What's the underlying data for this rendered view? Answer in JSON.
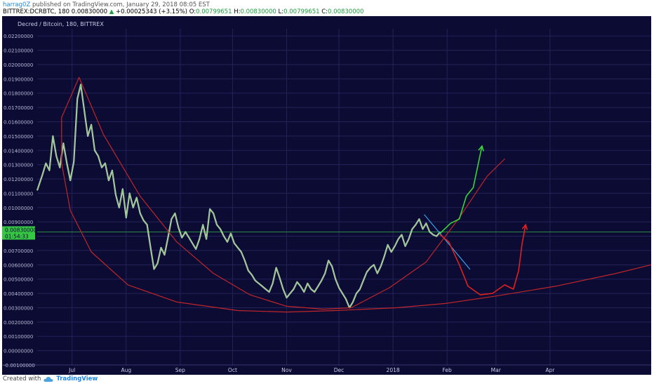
{
  "header": {
    "user": "harrag0Z",
    "published": "published on TradingView.com, January 29, 2018 08:05 EST",
    "symbol": "BITTREX:DCRBTC, 180",
    "price": "0.00830000",
    "arrow": "▲",
    "change": "+0.00025343 (+3.15%)",
    "o_label": "O:",
    "o_value": "0.00799651",
    "h_label": "H:",
    "h_value": "0.00830000",
    "l_label": "L:",
    "l_value": "0.00799651",
    "c_label": "C:",
    "c_value": "0.00830000"
  },
  "footer": {
    "created_with": "Created with",
    "brand": "TradingView",
    "logo_icon": "cloud-logo-icon"
  },
  "chart_data": {
    "type": "line",
    "title": "Decred / Bitcoin, 180, BITTREX",
    "ylim": [
      -0.001,
      0.0225
    ],
    "y_ticks": [
      "0.02200000",
      "0.02100000",
      "0.02000000",
      "0.01900000",
      "0.01800000",
      "0.01700000",
      "0.01600000",
      "0.01500000",
      "0.01400000",
      "0.01300000",
      "0.01200000",
      "0.01100000",
      "0.01000000",
      "0.00900000",
      "0.00800000",
      "0.00700000",
      "0.00600000",
      "0.00500000",
      "0.00400000",
      "0.00300000",
      "0.00200000",
      "0.00100000",
      "0.00000000",
      "-0.00100000"
    ],
    "x_ticks": [
      "Jul",
      "Aug",
      "Sep",
      "Oct",
      "Nov",
      "Dec",
      "2018",
      "Feb",
      "Mar",
      "Apr"
    ],
    "x_tick_days": [
      3,
      34,
      65,
      95,
      126,
      156,
      187,
      218,
      246,
      277
    ],
    "xlim_days": [
      -17,
      335
    ],
    "price_label": "0.00830000",
    "countdown_label": "01:54:33",
    "last_price": 0.0083,
    "series": [
      {
        "values": [
          [
            -17,
            0.0112
          ],
          [
            -14,
            0.0123
          ],
          [
            -12,
            0.0131
          ],
          [
            -10,
            0.0126
          ],
          [
            -8,
            0.015
          ],
          [
            -6,
            0.0136
          ],
          [
            -4,
            0.0128
          ],
          [
            -2,
            0.0145
          ],
          [
            0,
            0.0131
          ],
          [
            2,
            0.0119
          ],
          [
            4,
            0.0132
          ],
          [
            6,
            0.0176
          ],
          [
            8,
            0.0186
          ],
          [
            10,
            0.0168
          ],
          [
            12,
            0.015
          ],
          [
            14,
            0.0158
          ],
          [
            16,
            0.014
          ],
          [
            18,
            0.0136
          ],
          [
            20,
            0.0128
          ],
          [
            22,
            0.0131
          ],
          [
            24,
            0.0119
          ],
          [
            26,
            0.0126
          ],
          [
            28,
            0.0109
          ],
          [
            30,
            0.01
          ],
          [
            32,
            0.0113
          ],
          [
            34,
            0.0093
          ],
          [
            36,
            0.011
          ],
          [
            38,
            0.01
          ],
          [
            40,
            0.0107
          ],
          [
            42,
            0.0096
          ],
          [
            44,
            0.0091
          ],
          [
            46,
            0.0088
          ],
          [
            48,
            0.0072
          ],
          [
            50,
            0.0057
          ],
          [
            52,
            0.0061
          ],
          [
            54,
            0.0072
          ],
          [
            56,
            0.0067
          ],
          [
            58,
            0.0079
          ],
          [
            60,
            0.0092
          ],
          [
            62,
            0.0096
          ],
          [
            64,
            0.0086
          ],
          [
            66,
            0.0079
          ],
          [
            68,
            0.0083
          ],
          [
            70,
            0.0079
          ],
          [
            72,
            0.0075
          ],
          [
            74,
            0.0071
          ],
          [
            76,
            0.0078
          ],
          [
            78,
            0.0088
          ],
          [
            80,
            0.0078
          ],
          [
            82,
            0.0099
          ],
          [
            84,
            0.0096
          ],
          [
            86,
            0.0088
          ],
          [
            88,
            0.0085
          ],
          [
            90,
            0.008
          ],
          [
            92,
            0.0076
          ],
          [
            94,
            0.0082
          ],
          [
            96,
            0.0075
          ],
          [
            98,
            0.0072
          ],
          [
            100,
            0.0069
          ],
          [
            102,
            0.0063
          ],
          [
            104,
            0.0056
          ],
          [
            106,
            0.0053
          ],
          [
            108,
            0.0049
          ],
          [
            110,
            0.0047
          ],
          [
            112,
            0.0045
          ],
          [
            114,
            0.0043
          ],
          [
            116,
            0.0041
          ],
          [
            118,
            0.0047
          ],
          [
            120,
            0.0058
          ],
          [
            122,
            0.0051
          ],
          [
            124,
            0.0043
          ],
          [
            126,
            0.0037
          ],
          [
            128,
            0.004
          ],
          [
            130,
            0.0043
          ],
          [
            132,
            0.0048
          ],
          [
            134,
            0.0045
          ],
          [
            136,
            0.0041
          ],
          [
            138,
            0.0047
          ],
          [
            140,
            0.0043
          ],
          [
            142,
            0.0041
          ],
          [
            144,
            0.0045
          ],
          [
            146,
            0.0049
          ],
          [
            148,
            0.0054
          ],
          [
            150,
            0.0063
          ],
          [
            152,
            0.0059
          ],
          [
            154,
            0.005
          ],
          [
            156,
            0.0044
          ],
          [
            158,
            0.004
          ],
          [
            160,
            0.0036
          ],
          [
            162,
            0.003
          ],
          [
            164,
            0.0034
          ],
          [
            166,
            0.004
          ],
          [
            168,
            0.0043
          ],
          [
            170,
            0.0049
          ],
          [
            172,
            0.0055
          ],
          [
            174,
            0.0058
          ],
          [
            176,
            0.006
          ],
          [
            178,
            0.0054
          ],
          [
            180,
            0.0059
          ],
          [
            182,
            0.0066
          ],
          [
            184,
            0.0074
          ],
          [
            186,
            0.0069
          ],
          [
            188,
            0.0073
          ],
          [
            190,
            0.0078
          ],
          [
            192,
            0.0081
          ],
          [
            194,
            0.0073
          ],
          [
            196,
            0.0078
          ],
          [
            198,
            0.0085
          ],
          [
            200,
            0.0088
          ],
          [
            202,
            0.0092
          ],
          [
            204,
            0.0085
          ],
          [
            206,
            0.0089
          ],
          [
            208,
            0.0083
          ],
          [
            210,
            0.0081
          ],
          [
            212,
            0.008
          ],
          [
            214,
            0.0083
          ]
        ]
      }
    ],
    "annotations": {
      "outer_arc": [
        [
          7,
          0.0191
        ],
        [
          21,
          0.0151
        ],
        [
          42,
          0.0108
        ],
        [
          63,
          0.0076
        ],
        [
          84,
          0.0054
        ],
        [
          105,
          0.0039
        ],
        [
          126,
          0.0031
        ],
        [
          147,
          0.0029
        ],
        [
          163,
          0.003
        ],
        [
          185,
          0.0044
        ],
        [
          206,
          0.0062
        ],
        [
          225,
          0.0093
        ],
        [
          241,
          0.0122
        ],
        [
          251,
          0.0134
        ]
      ],
      "inner_arc": [
        [
          7,
          0.0191
        ],
        [
          -3,
          0.0163
        ],
        [
          -3,
          0.0131
        ],
        [
          2,
          0.0098
        ],
        [
          14,
          0.0069
        ],
        [
          35,
          0.0046
        ],
        [
          63,
          0.0034
        ],
        [
          98,
          0.0028
        ],
        [
          126,
          0.0027
        ],
        [
          154,
          0.0028
        ],
        [
          189,
          0.003
        ],
        [
          217,
          0.0033
        ],
        [
          245,
          0.0038
        ],
        [
          280,
          0.0045
        ],
        [
          315,
          0.0054
        ],
        [
          335,
          0.006
        ]
      ],
      "blue_trendline": [
        [
          205,
          0.0095
        ],
        [
          231,
          0.0057
        ]
      ],
      "green_path": [
        [
          214,
          0.0082
        ],
        [
          220,
          0.0089
        ],
        [
          225,
          0.0092
        ],
        [
          229,
          0.0108
        ],
        [
          233,
          0.0114
        ],
        [
          238,
          0.0143
        ]
      ],
      "red_path": [
        [
          214,
          0.0081
        ],
        [
          219,
          0.0076
        ],
        [
          225,
          0.006
        ],
        [
          230,
          0.0045
        ],
        [
          237,
          0.0039
        ],
        [
          244,
          0.004
        ],
        [
          251,
          0.0046
        ],
        [
          256,
          0.0043
        ],
        [
          259,
          0.0056
        ],
        [
          261,
          0.0075
        ],
        [
          263,
          0.0088
        ]
      ]
    }
  }
}
